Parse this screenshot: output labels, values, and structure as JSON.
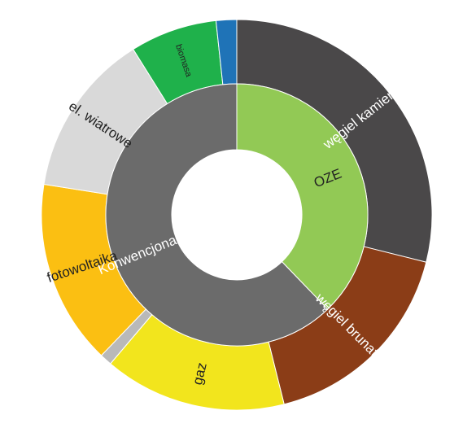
{
  "chart_data": {
    "type": "sunburst",
    "inner_ring": [
      {
        "label": "OZE",
        "share": 37.8,
        "color": "#92c955",
        "text_color": "#222222"
      },
      {
        "label": "Konwencjonalne",
        "share": 62.2,
        "color": "#6b6b6b",
        "text_color": "#ffffff"
      }
    ],
    "outer_ring": [
      {
        "label": "węgiel kamienny",
        "share": 28.9,
        "color": "#4a4849",
        "text_color": "#ffffff",
        "label_size": "normal"
      },
      {
        "label": "węgiel brunatny",
        "share": 17.2,
        "color": "#8b3d17",
        "text_color": "#ffffff",
        "label_size": "normal"
      },
      {
        "label": "gaz",
        "share": 15.1,
        "color": "#f2e51d",
        "text_color": "#222222",
        "label_size": "normal"
      },
      {
        "label": "",
        "share": 1.0,
        "color": "#b9b9b9",
        "text_color": "#222222",
        "label_size": "normal"
      },
      {
        "label": "fotowoltaika",
        "share": 15.3,
        "color": "#fbbf12",
        "text_color": "#222222",
        "label_size": "normal"
      },
      {
        "label": "el. wiatrowe",
        "share": 13.6,
        "color": "#d9d9d9",
        "text_color": "#222222",
        "label_size": "normal"
      },
      {
        "label": "biomasa",
        "share": 7.2,
        "color": "#1fb14b",
        "text_color": "#222222",
        "label_size": "small"
      },
      {
        "label": "",
        "share": 1.7,
        "color": "#1f73b7",
        "text_color": "#222222",
        "label_size": "small"
      }
    ]
  }
}
